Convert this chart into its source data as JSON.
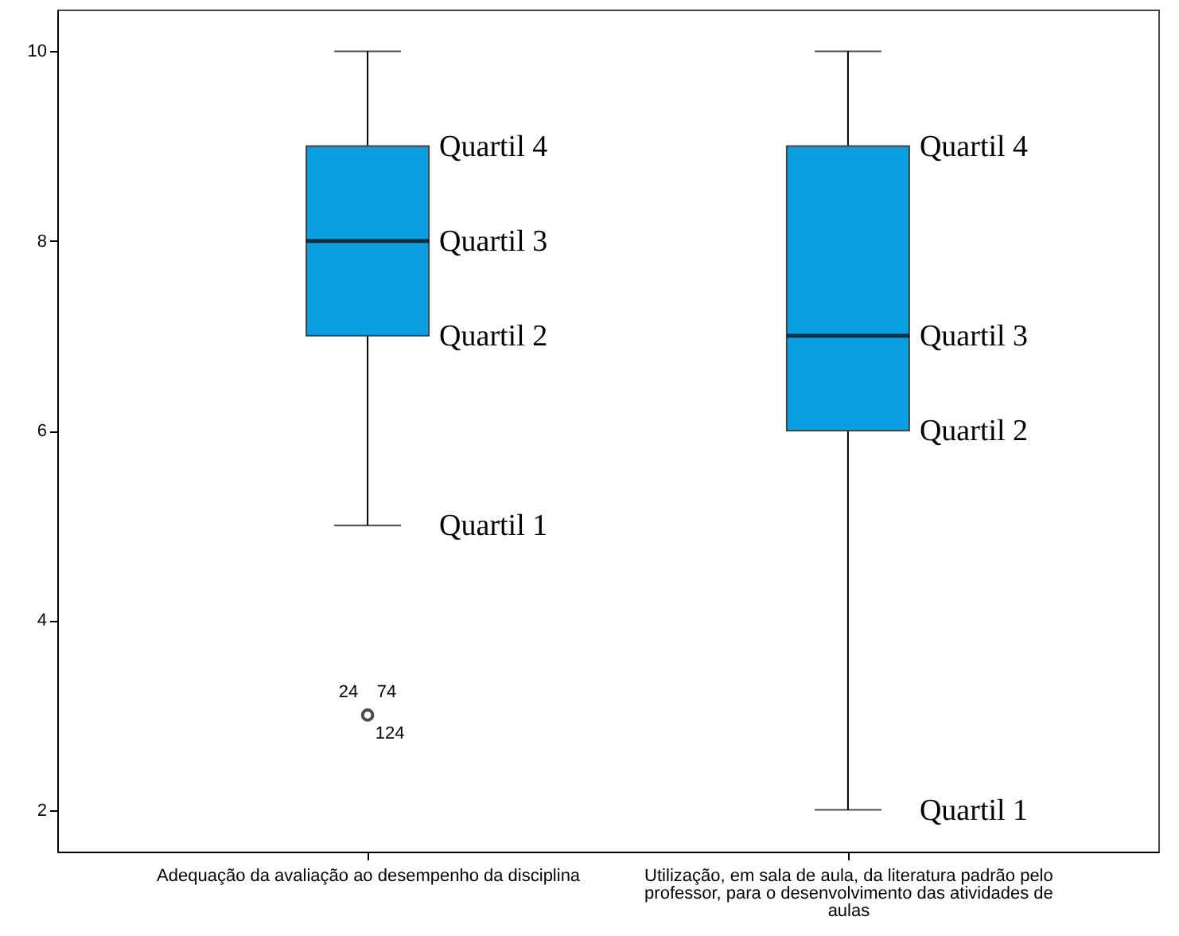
{
  "chart_data": {
    "type": "box",
    "categories": [
      "Adequação da avaliação ao desempenho da disciplina",
      "Utilização, em sala de aula, da literatura padrão pelo professor, para o desenvolvimento das atividades de aulas"
    ],
    "boxes": [
      {
        "low": 5,
        "q1": 7,
        "median": 8,
        "q3": 9,
        "high": 10,
        "outliers": [
          3
        ]
      },
      {
        "low": 2,
        "q1": 6,
        "median": 7,
        "q3": 9,
        "high": 10
      }
    ],
    "color": "#0b9ee0",
    "ylim": [
      1.56,
      10.44
    ],
    "yticks": [
      2,
      4,
      6,
      8,
      10
    ],
    "grid": false,
    "annotations": [
      {
        "text": "Quartil 4",
        "x": "Adequação da avaliação ao desempenho da disciplina",
        "y": 9
      },
      {
        "text": "Quartil 3",
        "x": "Adequação da avaliação ao desempenho da disciplina",
        "y": 8
      },
      {
        "text": "Quartil 2",
        "x": "Adequação da avaliação ao desempenho da disciplina",
        "y": 7
      },
      {
        "text": "Quartil 1",
        "x": "Adequação da avaliação ao desempenho da disciplina",
        "y": 5
      },
      {
        "text": "Quartil 4",
        "x": "Utilização, em sala de aula, da literatura padrão pelo professor, para o desenvolvimento das atividades de aulas",
        "y": 9
      },
      {
        "text": "Quartil 3",
        "x": "Utilização, em sala de aula, da literatura padrão pelo professor, para o desenvolvimento das atividades de aulas",
        "y": 7
      },
      {
        "text": "Quartil 2",
        "x": "Utilização, em sala de aula, da literatura padrão pelo professor, para o desenvolvimento das atividades de aulas",
        "y": 6
      },
      {
        "text": "Quartil 1",
        "x": "Utilização, em sala de aula, da literatura padrão pelo professor, para o desenvolvimento das atividades de aulas",
        "y": 2
      },
      "24",
      "74",
      "124"
    ]
  }
}
